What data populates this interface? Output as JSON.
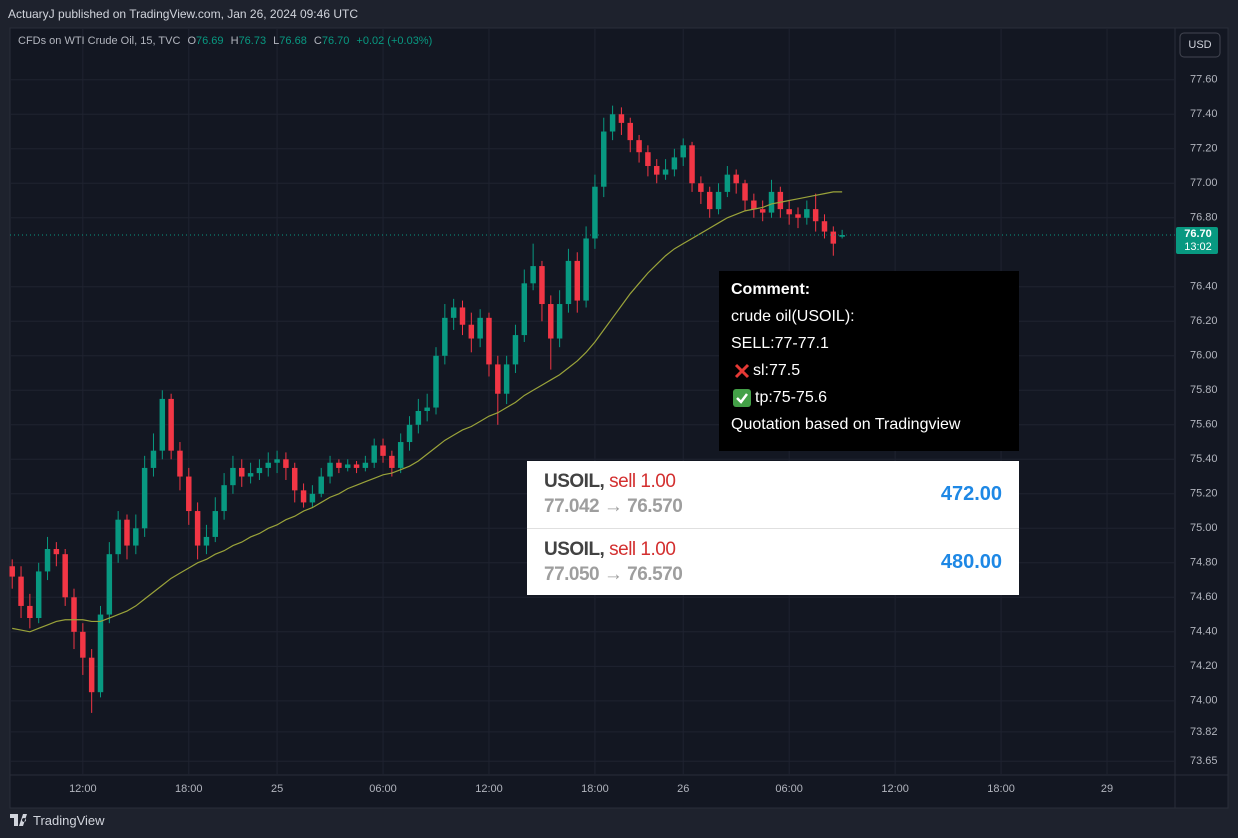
{
  "header": {
    "published": "ActuaryJ published on TradingView.com, Jan 26, 2024 09:46 UTC",
    "currency": "USD",
    "brand": "TradingView"
  },
  "chart_data": {
    "type": "candlestick",
    "symbol": "CFDs on WTI Crude Oil, 15, TVC",
    "legend": {
      "open_key": "O",
      "open": 76.69,
      "high_key": "H",
      "high": 76.73,
      "low_key": "L",
      "low": 76.68,
      "close_key": "C",
      "close": {
        "value": 76.7,
        "label": "76.70"
      },
      "change": "+0.02 (+0.03%)"
    },
    "up_color": "#089981",
    "down_color": "#f23645",
    "open": [
      74.78,
      74.72,
      74.55,
      74.48,
      74.75,
      74.88,
      74.85,
      74.6,
      74.4,
      74.25,
      74.05,
      74.5,
      74.85,
      75.05,
      74.9,
      75.0,
      75.35,
      75.45,
      75.75,
      75.45,
      75.3,
      75.1,
      74.9,
      74.95,
      75.1,
      75.25,
      75.35,
      75.3,
      75.32,
      75.35,
      75.38,
      75.4,
      75.35,
      75.22,
      75.15,
      75.2,
      75.3,
      75.38,
      75.35,
      75.37,
      75.35,
      75.38,
      75.48,
      75.42,
      75.35,
      75.5,
      75.6,
      75.68,
      75.7,
      76.0,
      76.22,
      76.28,
      76.18,
      76.1,
      76.22,
      75.95,
      75.78,
      75.95,
      76.12,
      76.42,
      76.52,
      76.3,
      76.1,
      76.3,
      76.55,
      76.32,
      76.68,
      76.98,
      77.3,
      77.4,
      77.35,
      77.25,
      77.18,
      77.1,
      77.05,
      77.08,
      77.15,
      77.22,
      77.0,
      76.95,
      76.85,
      76.95,
      77.05,
      77.0,
      76.9,
      76.85,
      76.83,
      76.95,
      76.85,
      76.82,
      76.8,
      76.85,
      76.78,
      76.72,
      76.69
    ],
    "high": [
      74.82,
      74.78,
      74.62,
      74.8,
      74.95,
      74.92,
      74.88,
      74.65,
      74.45,
      74.3,
      74.55,
      74.92,
      75.1,
      75.08,
      75.08,
      75.42,
      75.55,
      75.8,
      75.78,
      75.5,
      75.35,
      75.15,
      75.02,
      75.18,
      75.32,
      75.42,
      75.4,
      75.38,
      75.4,
      75.44,
      75.45,
      75.44,
      75.38,
      75.26,
      75.25,
      75.35,
      75.42,
      75.4,
      75.4,
      75.39,
      75.42,
      75.52,
      75.52,
      75.45,
      75.55,
      75.65,
      75.75,
      75.78,
      76.05,
      76.3,
      76.33,
      76.32,
      76.25,
      76.27,
      76.25,
      76.0,
      76.0,
      76.18,
      76.5,
      76.65,
      76.55,
      76.35,
      76.38,
      76.62,
      76.6,
      76.75,
      77.05,
      77.38,
      77.45,
      77.44,
      77.38,
      77.28,
      77.22,
      77.14,
      77.14,
      77.2,
      77.26,
      77.24,
      77.04,
      76.98,
      77.0,
      77.1,
      77.08,
      77.02,
      76.94,
      76.9,
      77.02,
      76.98,
      76.9,
      76.86,
      76.9,
      76.94,
      76.82,
      76.75,
      76.73
    ],
    "low": [
      74.65,
      74.48,
      74.42,
      74.45,
      74.7,
      74.78,
      74.55,
      74.3,
      74.15,
      73.93,
      74.02,
      74.45,
      74.8,
      74.82,
      74.85,
      74.95,
      75.3,
      75.4,
      75.4,
      75.22,
      75.02,
      74.82,
      74.85,
      74.92,
      75.05,
      75.2,
      75.24,
      75.26,
      75.28,
      75.3,
      75.32,
      75.28,
      75.15,
      75.12,
      75.12,
      75.18,
      75.26,
      75.32,
      75.33,
      75.32,
      75.33,
      75.35,
      75.38,
      75.3,
      75.32,
      75.45,
      75.55,
      75.62,
      75.66,
      75.95,
      76.15,
      76.12,
      76.02,
      76.05,
      75.88,
      75.6,
      75.72,
      75.9,
      76.08,
      76.38,
      76.2,
      75.92,
      76.05,
      76.25,
      76.25,
      76.28,
      76.62,
      76.92,
      77.25,
      77.28,
      77.18,
      77.12,
      77.04,
      77.0,
      77.02,
      77.04,
      77.1,
      76.95,
      76.88,
      76.8,
      76.82,
      76.92,
      76.94,
      76.84,
      76.8,
      76.78,
      76.8,
      76.8,
      76.76,
      76.74,
      76.76,
      76.72,
      76.68,
      76.58,
      76.68
    ],
    "close": [
      74.72,
      74.55,
      74.48,
      74.75,
      74.88,
      74.85,
      74.6,
      74.4,
      74.25,
      74.05,
      74.5,
      74.85,
      75.05,
      74.9,
      75.0,
      75.35,
      75.45,
      75.75,
      75.45,
      75.3,
      75.1,
      74.9,
      74.95,
      75.1,
      75.25,
      75.35,
      75.3,
      75.32,
      75.35,
      75.38,
      75.4,
      75.35,
      75.22,
      75.15,
      75.2,
      75.3,
      75.38,
      75.35,
      75.37,
      75.35,
      75.38,
      75.48,
      75.42,
      75.35,
      75.5,
      75.6,
      75.68,
      75.7,
      76.0,
      76.22,
      76.28,
      76.18,
      76.1,
      76.22,
      75.95,
      75.78,
      75.95,
      76.12,
      76.42,
      76.52,
      76.3,
      76.1,
      76.3,
      76.55,
      76.32,
      76.68,
      76.98,
      77.3,
      77.4,
      77.35,
      77.25,
      77.18,
      77.1,
      77.05,
      77.08,
      77.15,
      77.22,
      77.0,
      76.95,
      76.85,
      76.95,
      77.05,
      77.0,
      76.9,
      76.85,
      76.83,
      76.95,
      76.85,
      76.82,
      76.8,
      76.85,
      76.78,
      76.72,
      76.65,
      76.7
    ],
    "lines": [
      {
        "color": "#9aa33a",
        "values": [
          74.42,
          74.41,
          74.4,
          74.42,
          74.44,
          74.46,
          74.47,
          74.47,
          74.47,
          74.46,
          74.46,
          74.48,
          74.5,
          74.52,
          74.55,
          74.59,
          74.63,
          74.67,
          74.71,
          74.74,
          74.77,
          74.8,
          74.82,
          74.85,
          74.87,
          74.9,
          74.92,
          74.95,
          74.97,
          75.0,
          75.02,
          75.05,
          75.07,
          75.1,
          75.12,
          75.15,
          75.18,
          75.2,
          75.23,
          75.25,
          75.27,
          75.29,
          75.31,
          75.32,
          75.34,
          75.36,
          75.39,
          75.43,
          75.47,
          75.51,
          75.54,
          75.57,
          75.59,
          75.62,
          75.65,
          75.67,
          75.7,
          75.73,
          75.77,
          75.8,
          75.83,
          75.86,
          75.89,
          75.93,
          75.97,
          76.02,
          76.08,
          76.15,
          76.22,
          76.29,
          76.36,
          76.42,
          76.48,
          76.53,
          76.58,
          76.62,
          76.65,
          76.68,
          76.71,
          76.74,
          76.77,
          76.8,
          76.82,
          76.84,
          76.85,
          76.86,
          76.88,
          76.89,
          76.9,
          76.91,
          76.92,
          76.93,
          76.94,
          76.95,
          76.95
        ]
      }
    ],
    "last_price": {
      "value": 76.7,
      "label": "76.70",
      "countdown": "13:02",
      "color": "#089981"
    },
    "xlim": [
      -0.25,
      131.7
    ],
    "xticks": [
      {
        "value": 8,
        "label": "12:00"
      },
      {
        "value": 20,
        "label": "18:00"
      },
      {
        "value": 30,
        "label": "25"
      },
      {
        "value": 42,
        "label": "06:00"
      },
      {
        "value": 54,
        "label": "12:00"
      },
      {
        "value": 66,
        "label": "18:00"
      },
      {
        "value": 76,
        "label": "26"
      },
      {
        "value": 88,
        "label": "06:00"
      },
      {
        "value": 100,
        "label": "12:00"
      },
      {
        "value": 112,
        "label": "18:00"
      },
      {
        "value": 124,
        "label": "29"
      }
    ],
    "ylim": [
      73.57,
      77.9
    ],
    "yticks": [
      {
        "value": 77.6,
        "label": "77.60"
      },
      {
        "value": 77.4,
        "label": "77.40"
      },
      {
        "value": 77.2,
        "label": "77.20"
      },
      {
        "value": 77,
        "label": "77.00"
      },
      {
        "value": 76.8,
        "label": "76.80"
      },
      {
        "value": 76.4,
        "label": "76.40"
      },
      {
        "value": 76.2,
        "label": "76.20"
      },
      {
        "value": 76,
        "label": "76.00"
      },
      {
        "value": 75.8,
        "label": "75.80"
      },
      {
        "value": 75.6,
        "label": "75.60"
      },
      {
        "value": 75.4,
        "label": "75.40"
      },
      {
        "value": 75.2,
        "label": "75.20"
      },
      {
        "value": 75,
        "label": "75.00"
      },
      {
        "value": 74.8,
        "label": "74.80"
      },
      {
        "value": 74.6,
        "label": "74.60"
      },
      {
        "value": 74.4,
        "label": "74.40"
      },
      {
        "value": 74.2,
        "label": "74.20"
      },
      {
        "value": 74,
        "label": "74.00"
      },
      {
        "value": 73.82,
        "label": "73.82"
      },
      {
        "value": 73.65,
        "label": "73.65"
      }
    ],
    "grid": true
  },
  "comment": {
    "title": "Comment:",
    "lines": [
      "crude oil(USOIL):",
      "SELL:77-77.1",
      "sl:77.5",
      "tp:75-75.6",
      "Quotation based on Tradingview"
    ]
  },
  "trades": [
    {
      "symbol": "USOIL,",
      "side": "sell 1.00",
      "prices": "77.042 → 76.570",
      "profit": "472.00"
    },
    {
      "symbol": "USOIL,",
      "side": "sell 1.00",
      "prices": "77.050 → 76.570",
      "profit": "480.00"
    }
  ]
}
